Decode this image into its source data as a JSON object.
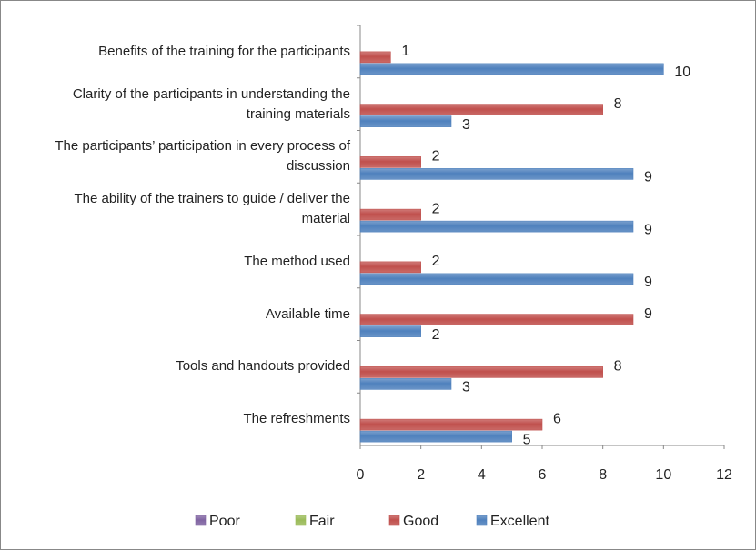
{
  "chart_data": {
    "type": "bar",
    "orientation": "horizontal",
    "categories": [
      "Benefits of the training for the participants",
      "Clarity of the participants in understanding the training materials",
      "The participants’ participation in every process of discussion",
      "The ability of the trainers to guide / deliver the material",
      "The method used",
      "Available time",
      "Tools and handouts provided",
      "The refreshments"
    ],
    "series": [
      {
        "name": "Poor",
        "color": "#8064a2",
        "values": [
          null,
          null,
          null,
          null,
          null,
          null,
          null,
          null
        ]
      },
      {
        "name": "Fair",
        "color": "#9bbb59",
        "values": [
          null,
          null,
          null,
          null,
          null,
          null,
          null,
          null
        ]
      },
      {
        "name": "Good",
        "color": "#c0504d",
        "values": [
          1,
          8,
          2,
          2,
          2,
          9,
          8,
          6
        ]
      },
      {
        "name": "Excellent",
        "color": "#4f81bd",
        "values": [
          10,
          3,
          9,
          9,
          9,
          2,
          3,
          5
        ]
      }
    ],
    "xlim": [
      0,
      12
    ],
    "xticks": [
      0,
      2,
      4,
      6,
      8,
      10,
      12
    ],
    "legend": "bottom"
  }
}
